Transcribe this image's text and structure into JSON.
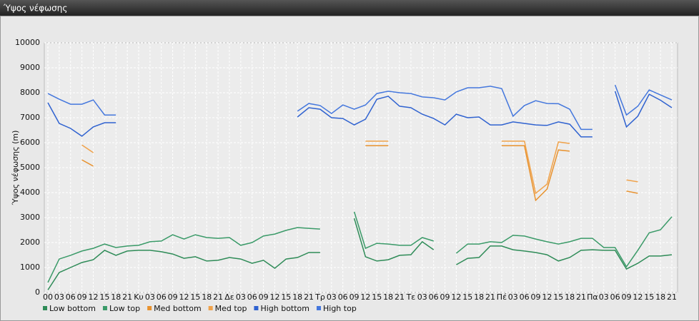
{
  "window_title": "Ύψος νέφωσης",
  "chart_data": {
    "type": "line",
    "y_label": "Ύψος νέφωσης (m)",
    "categories": [
      "00",
      "03",
      "06",
      "09",
      "12",
      "15",
      "18",
      "21",
      "Κυ",
      "03",
      "06",
      "09",
      "12",
      "15",
      "18",
      "21",
      "Δε",
      "03",
      "06",
      "09",
      "12",
      "15",
      "18",
      "21",
      "Τρ",
      "03",
      "06",
      "09",
      "12",
      "15",
      "18",
      "21",
      "Τε",
      "03",
      "06",
      "09",
      "12",
      "15",
      "18",
      "21",
      "Πέ",
      "03",
      "06",
      "09",
      "12",
      "15",
      "18",
      "21",
      "Πα",
      "03",
      "06",
      "09",
      "12",
      "15",
      "18",
      "21"
    ],
    "ylim": [
      0,
      10000
    ],
    "yticks": [
      0,
      1000,
      2000,
      3000,
      4000,
      5000,
      6000,
      7000,
      8000,
      9000,
      10000
    ],
    "grid": true,
    "series": [
      {
        "name": "Low bottom",
        "color": "#2e8b57",
        "values": [
          100,
          800,
          1000,
          1200,
          1310,
          1690,
          1490,
          1660,
          1690,
          1690,
          1630,
          1540,
          1370,
          1430,
          1260,
          1290,
          1400,
          1340,
          1170,
          1290,
          970,
          1340,
          1400,
          1600,
          1600,
          null,
          null,
          2970,
          1430,
          1260,
          1310,
          1490,
          1510,
          2030,
          1710,
          null,
          1110,
          1370,
          1400,
          1860,
          1860,
          1710,
          1660,
          1600,
          1510,
          1260,
          1400,
          1690,
          1710,
          1690,
          1690,
          940,
          1170,
          1460,
          1460,
          1510
        ]
      },
      {
        "name": "Low top",
        "color": "#3a9a68",
        "values": [
          400,
          1340,
          1490,
          1660,
          1770,
          1940,
          1800,
          1860,
          1890,
          2030,
          2060,
          2310,
          2140,
          2310,
          2200,
          2170,
          2200,
          1890,
          2000,
          2260,
          2340,
          2490,
          2600,
          2570,
          2540,
          null,
          null,
          3230,
          1770,
          1970,
          1940,
          1890,
          1890,
          2200,
          2060,
          null,
          1570,
          1940,
          1940,
          2030,
          2000,
          2290,
          2260,
          2140,
          2030,
          1940,
          2030,
          2170,
          2170,
          1800,
          1800,
          1030,
          1690,
          2390,
          2510,
          3030
        ]
      },
      {
        "name": "Med bottom",
        "color": "#e8922e",
        "values": [
          null,
          null,
          null,
          5310,
          5060,
          null,
          null,
          null,
          null,
          null,
          null,
          null,
          null,
          null,
          null,
          null,
          null,
          null,
          null,
          null,
          null,
          null,
          null,
          null,
          null,
          null,
          null,
          null,
          5880,
          5880,
          5880,
          null,
          null,
          null,
          null,
          null,
          null,
          null,
          null,
          null,
          5880,
          5880,
          5880,
          3690,
          4140,
          5710,
          5660,
          null,
          null,
          null,
          null,
          4060,
          3970,
          null,
          null,
          null
        ]
      },
      {
        "name": "Med top",
        "color": "#f0a24a",
        "values": [
          null,
          null,
          null,
          5910,
          5600,
          null,
          null,
          null,
          null,
          null,
          null,
          null,
          null,
          null,
          null,
          null,
          null,
          null,
          null,
          null,
          null,
          null,
          null,
          null,
          null,
          null,
          null,
          null,
          6060,
          6060,
          6060,
          null,
          null,
          null,
          null,
          null,
          null,
          null,
          null,
          null,
          6060,
          6060,
          6060,
          3970,
          4340,
          6030,
          5970,
          null,
          null,
          null,
          null,
          4510,
          4430,
          null,
          null,
          null
        ]
      },
      {
        "name": "High bottom",
        "color": "#2f62d0",
        "values": [
          7600,
          6770,
          6570,
          6260,
          6630,
          6800,
          6800,
          null,
          null,
          null,
          null,
          null,
          null,
          null,
          null,
          null,
          null,
          null,
          null,
          null,
          null,
          null,
          7030,
          7400,
          7340,
          7000,
          6970,
          6710,
          6940,
          7740,
          7860,
          7460,
          7400,
          7140,
          6970,
          6710,
          7140,
          7000,
          7030,
          6710,
          6710,
          6830,
          6770,
          6710,
          6690,
          6830,
          6740,
          6230,
          6230,
          null,
          8060,
          6630,
          7060,
          7940,
          7700,
          7400
        ]
      },
      {
        "name": "High top",
        "color": "#4477dd",
        "values": [
          7970,
          7740,
          7540,
          7540,
          7710,
          7110,
          7110,
          null,
          null,
          null,
          null,
          null,
          null,
          null,
          null,
          null,
          null,
          null,
          null,
          null,
          null,
          null,
          7260,
          7570,
          7490,
          7170,
          7510,
          7340,
          7510,
          7970,
          8060,
          8000,
          7970,
          7830,
          7800,
          7710,
          8030,
          8200,
          8200,
          8260,
          8170,
          7060,
          7490,
          7680,
          7570,
          7560,
          7340,
          6530,
          6530,
          null,
          8310,
          7110,
          7460,
          8110,
          7910,
          7710
        ]
      }
    ]
  }
}
